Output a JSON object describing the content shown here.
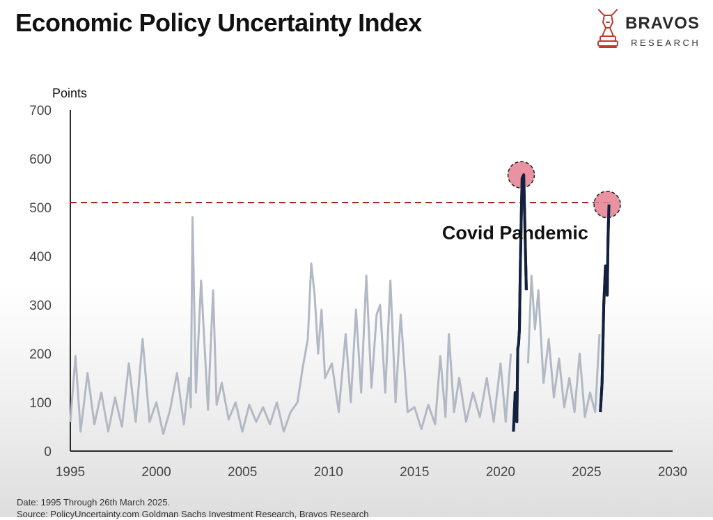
{
  "header": {
    "title": "Economic Policy Uncertainty Index"
  },
  "logo": {
    "name": "BRAVOS",
    "sub": "RESEARCH",
    "icon": "bull-chess-knight-icon",
    "color": "#c0392b"
  },
  "footer": {
    "date_note": "Date: 1995 Through 26th March 2025.",
    "source_note": "Source: PolicyUncertainty.com Goldman Sachs Investment Research, Bravos Research"
  },
  "chart_data": {
    "type": "line",
    "title": "Economic Policy Uncertainty Index",
    "ylabel": "Points",
    "xlabel": "",
    "xlim": [
      1995,
      2030
    ],
    "ylim": [
      0,
      700
    ],
    "x_ticks": [
      1995,
      2000,
      2005,
      2010,
      2015,
      2020,
      2025,
      2030
    ],
    "y_ticks": [
      0,
      100,
      200,
      300,
      400,
      500,
      600,
      700
    ],
    "grid": false,
    "reference_line": {
      "y": 510,
      "style": "dashed",
      "color": "#a0281e"
    },
    "annotations": [
      {
        "text": "Covid Pandemic",
        "x": 2016.6,
        "y": 435
      }
    ],
    "highlights": [
      {
        "x": 2021.2,
        "y": 567,
        "shape": "circle",
        "color": "#e57f91"
      },
      {
        "x": 2026.2,
        "y": 506,
        "shape": "circle",
        "color": "#e57f91"
      }
    ],
    "series": [
      {
        "color": "#b2b9c4",
        "x": [
          1995.0,
          1995.3,
          1995.6,
          1996.0,
          1996.4,
          1996.8,
          1997.2,
          1997.6,
          1998.0,
          1998.4,
          1998.8,
          1999.2,
          1999.6,
          2000.0,
          2000.4,
          2000.8,
          2001.2,
          2001.6,
          2001.9,
          2002.0,
          2002.1,
          2002.3,
          2002.6,
          2003.0,
          2003.3,
          2003.5,
          2003.8,
          2004.2,
          2004.6,
          2005.0,
          2005.4,
          2005.8,
          2006.2,
          2006.6,
          2007.0,
          2007.4,
          2007.8,
          2008.2,
          2008.5,
          2008.8,
          2009.0,
          2009.2,
          2009.4,
          2009.6,
          2009.8,
          2010.2,
          2010.6,
          2011.0,
          2011.3,
          2011.6,
          2011.9,
          2012.2,
          2012.5,
          2012.8,
          2013.0,
          2013.3,
          2013.6,
          2013.9,
          2014.2,
          2014.6,
          2015.0,
          2015.4,
          2015.8,
          2016.2,
          2016.5,
          2016.8,
          2017.0,
          2017.3,
          2017.6,
          2018.0,
          2018.4,
          2018.8,
          2019.2,
          2019.6,
          2020.0,
          2020.3,
          2020.6
        ],
        "values": [
          60,
          195,
          40,
          160,
          55,
          120,
          40,
          110,
          50,
          180,
          60,
          230,
          60,
          100,
          35,
          85,
          160,
          55,
          150,
          90,
          480,
          120,
          350,
          85,
          330,
          95,
          140,
          65,
          100,
          40,
          95,
          60,
          90,
          55,
          100,
          40,
          80,
          100,
          170,
          230,
          385,
          320,
          200,
          290,
          150,
          180,
          80,
          240,
          100,
          290,
          120,
          360,
          130,
          280,
          300,
          120,
          350,
          100,
          280,
          80,
          90,
          45,
          95,
          55,
          195,
          70,
          240,
          80,
          150,
          60,
          120,
          70,
          150,
          60,
          180,
          60,
          200
        ]
      },
      {
        "color": "#b2b9c4",
        "x": [
          2021.6,
          2021.8,
          2022.0,
          2022.2,
          2022.5,
          2022.8,
          2023.1,
          2023.4,
          2023.7,
          2024.0,
          2024.3,
          2024.6,
          2024.9,
          2025.2,
          2025.5,
          2025.75
        ],
        "values": [
          180,
          360,
          250,
          330,
          140,
          230,
          110,
          190,
          90,
          150,
          80,
          200,
          70,
          120,
          80,
          240
        ]
      },
      {
        "color": "#13213f",
        "x": [
          2020.75,
          2020.85,
          2020.95,
          2021.0,
          2021.05,
          2021.1,
          2021.15,
          2021.2,
          2021.25,
          2021.35,
          2021.5
        ],
        "values": [
          40,
          120,
          60,
          210,
          220,
          250,
          380,
          470,
          560,
          567,
          330
        ]
      },
      {
        "color": "#13213f",
        "x": [
          2025.8,
          2025.9,
          2026.0,
          2026.1,
          2026.2,
          2026.25,
          2026.3
        ],
        "values": [
          80,
          140,
          300,
          380,
          320,
          440,
          506
        ]
      }
    ]
  }
}
